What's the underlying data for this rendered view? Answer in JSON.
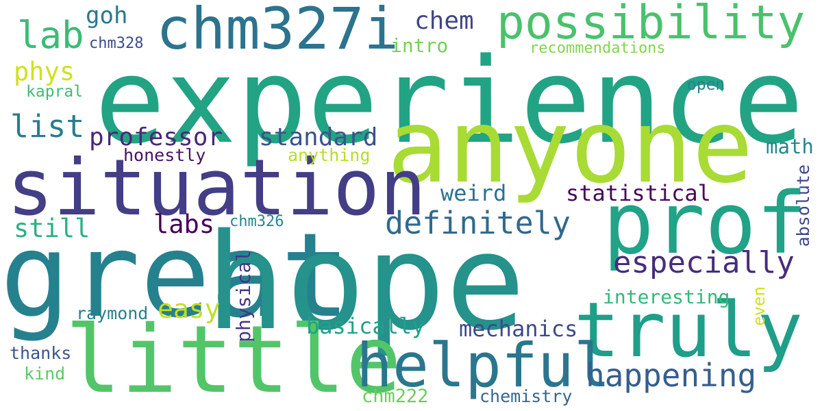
{
  "words": [
    {
      "text": "experience",
      "color": "#22a384"
    },
    {
      "text": "anyone",
      "color": "#a8db34"
    },
    {
      "text": "situation",
      "color": "#433e85"
    },
    {
      "text": "great",
      "color": "#26818e"
    },
    {
      "text": "hope",
      "color": "#25928c"
    },
    {
      "text": "prof",
      "color": "#20a386"
    },
    {
      "text": "truly",
      "color": "#1f9e89"
    },
    {
      "text": "little",
      "color": "#53c569"
    },
    {
      "text": "helpful",
      "color": "#2a768e"
    },
    {
      "text": "chm327i",
      "color": "#2c738e"
    },
    {
      "text": "possibility",
      "color": "#4ac16d"
    },
    {
      "text": "lab",
      "color": "#3bbb75"
    },
    {
      "text": "happening",
      "color": "#355e8d"
    },
    {
      "text": "definitely",
      "color": "#30698e"
    },
    {
      "text": "especially",
      "color": "#472c7a"
    },
    {
      "text": "list",
      "color": "#287d8e"
    },
    {
      "text": "professor",
      "color": "#482878"
    },
    {
      "text": "standard",
      "color": "#3b528b"
    },
    {
      "text": "chem",
      "color": "#414487"
    },
    {
      "text": "goh",
      "color": "#2a788e"
    },
    {
      "text": "phys",
      "color": "#d0e11c"
    },
    {
      "text": "still",
      "color": "#2ab07f"
    },
    {
      "text": "labs",
      "color": "#440154"
    },
    {
      "text": "weird",
      "color": "#2d708e"
    },
    {
      "text": "statistical",
      "color": "#46075a"
    },
    {
      "text": "easy",
      "color": "#c2df23"
    },
    {
      "text": "basically",
      "color": "#1fa188"
    },
    {
      "text": "mechanics",
      "color": "#3e4989"
    },
    {
      "text": "math",
      "color": "#25858e"
    },
    {
      "text": "interesting",
      "color": "#35b779"
    },
    {
      "text": "intro",
      "color": "#73d056"
    },
    {
      "text": "honestly",
      "color": "#471063"
    },
    {
      "text": "anything",
      "color": "#b5de2b"
    },
    {
      "text": "raymond",
      "color": "#27808e"
    },
    {
      "text": "thanks",
      "color": "#3a548c"
    },
    {
      "text": "kind",
      "color": "#5ec962"
    },
    {
      "text": "chm222",
      "color": "#6ccd5a"
    },
    {
      "text": "chemistry",
      "color": "#31678e"
    },
    {
      "text": "chm328",
      "color": "#3e4a89"
    },
    {
      "text": "chm326",
      "color": "#23898e"
    },
    {
      "text": "kapral",
      "color": "#3dbc74"
    },
    {
      "text": "open",
      "color": "#26828e"
    },
    {
      "text": "recommendations",
      "color": "#85d54a"
    },
    {
      "text": "physical",
      "color": "#453581"
    },
    {
      "text": "absolute",
      "color": "#3f4788"
    },
    {
      "text": "even",
      "color": "#d2e21b"
    }
  ]
}
